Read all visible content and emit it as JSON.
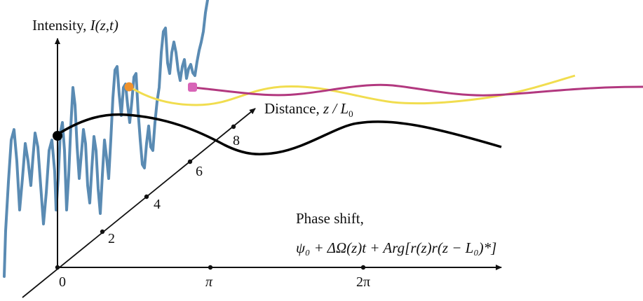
{
  "labels": {
    "intensity_prefix": "Intensity, ",
    "intensity_symbol": "I(z,t)",
    "distance_prefix": "Distance, ",
    "distance_symbol": "z / L",
    "distance_sub": "0",
    "phase_line1": "Phase shift,",
    "phase_formula": "ψ₀ + ΔΩ(z)t + Arg[r(z)r(z − L₀)*]"
  },
  "phase_ticks": [
    "0",
    "π",
    "2π"
  ],
  "distance_ticks": [
    "2",
    "4",
    "6",
    "8"
  ],
  "colors": {
    "axes": "#111111",
    "signal": "#5a8bb3",
    "curve_front": "#000000",
    "curve_yellow": "#f1dd4f",
    "curve_magenta": "#b2387f",
    "marker_black": "#000000",
    "marker_orange": "#f0922c",
    "marker_magenta": "#d864b7"
  }
}
